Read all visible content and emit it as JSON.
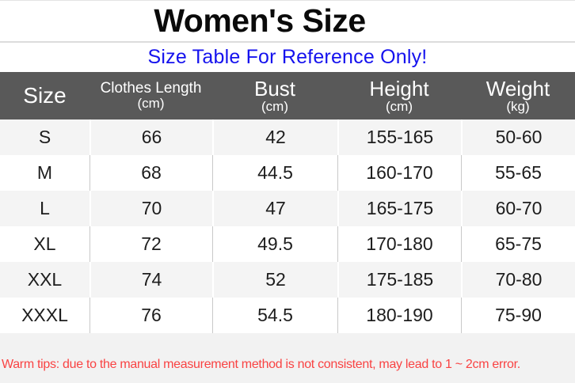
{
  "page": {
    "title": "Women's Size",
    "subtitle": "Size Table For Reference Only!",
    "footnote": "Warm tips: due to the manual measurement method is not consistent, may lead to 1 ~ 2cm error."
  },
  "chart_data": {
    "type": "table",
    "title": "Women's Size",
    "subtitle": "Size Table For Reference Only!",
    "columns": [
      {
        "label": "Size",
        "unit": ""
      },
      {
        "label": "Clothes Length",
        "unit": "(cm)"
      },
      {
        "label": "Bust",
        "unit": "(cm)"
      },
      {
        "label": "Height",
        "unit": "(cm)"
      },
      {
        "label": "Weight",
        "unit": "(kg)"
      }
    ],
    "rows": [
      [
        "S",
        "66",
        "42",
        "155-165",
        "50-60"
      ],
      [
        "M",
        "68",
        "44.5",
        "160-170",
        "55-65"
      ],
      [
        "L",
        "70",
        "47",
        "165-175",
        "60-70"
      ],
      [
        "XL",
        "72",
        "49.5",
        "170-180",
        "65-75"
      ],
      [
        "XXL",
        "74",
        "52",
        "175-185",
        "70-80"
      ],
      [
        "XXXL",
        "76",
        "54.5",
        "180-190",
        "75-90"
      ]
    ],
    "footnote": "Warm tips: due to the manual measurement method is not consistent, may lead to 1 ~ 2cm error."
  },
  "colors": {
    "header_bg": "#595959",
    "header_text": "#ffffff",
    "subtitle_blue": "#1512ee",
    "warm_tips_red": "#f94343",
    "row_alt_bg": "#f4f4f4",
    "row_bg": "#ffffff",
    "grid_line": "#c9c9c9",
    "footer_bg": "#f2f2f2"
  }
}
